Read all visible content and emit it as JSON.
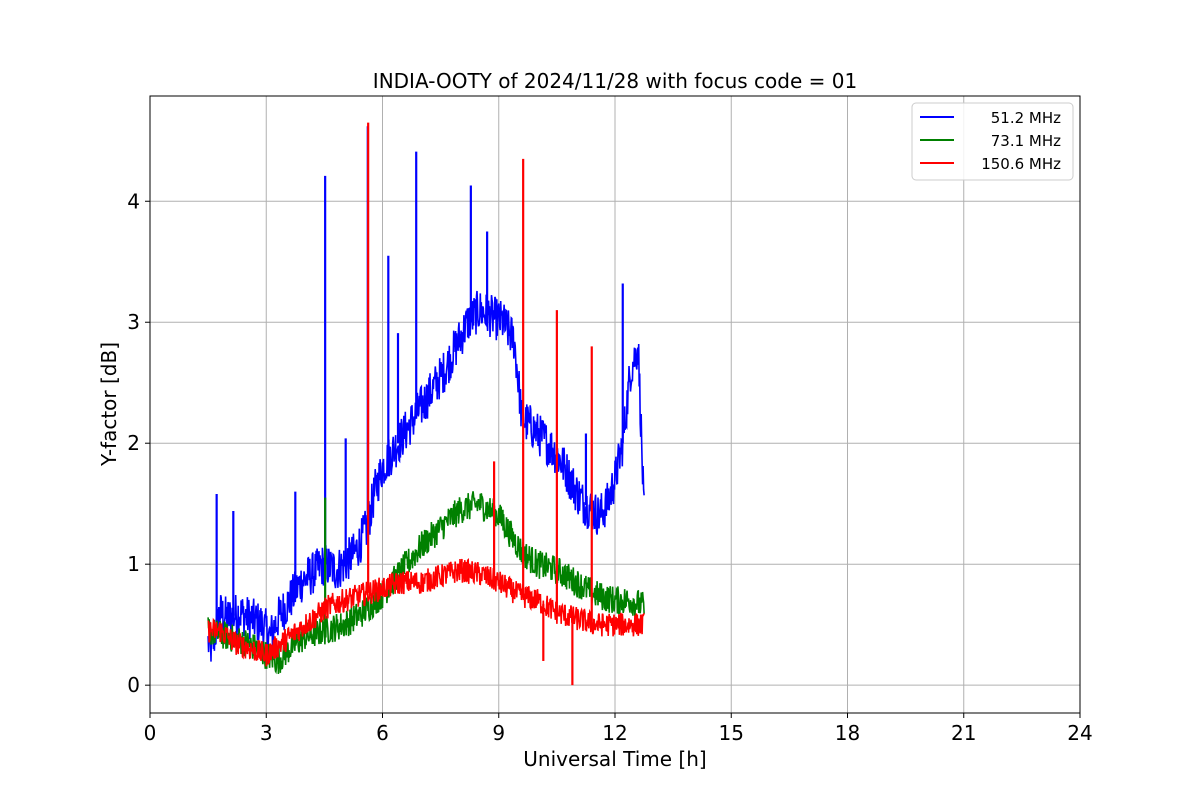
{
  "chart_data": {
    "type": "line",
    "title": "INDIA-OOTY of 2024/11/28 with focus code = 01",
    "xlabel": "Universal Time [h]",
    "ylabel": "Y-factor [dB]",
    "xlim": [
      0,
      24
    ],
    "ylim": [
      -0.23,
      4.87
    ],
    "xticks": [
      0,
      3,
      6,
      9,
      12,
      15,
      18,
      21,
      24
    ],
    "yticks": [
      0,
      1,
      2,
      3,
      4
    ],
    "grid": true,
    "legend_position": "top-right",
    "series": [
      {
        "name": "51.2 MHz",
        "color": "#0000ff",
        "x": [
          1.5,
          1.6,
          1.8,
          2.0,
          2.3,
          2.6,
          2.9,
          3.1,
          3.3,
          3.5,
          3.7,
          3.9,
          4.1,
          4.3,
          4.5,
          4.8,
          5.0,
          5.3,
          5.6,
          5.8,
          6.0,
          6.2,
          6.4,
          6.6,
          6.8,
          7.0,
          7.3,
          7.6,
          7.9,
          8.2,
          8.5,
          8.8,
          9.1,
          9.4,
          9.6,
          9.8,
          10.1,
          10.4,
          10.7,
          11.0,
          11.2,
          11.4,
          11.6,
          11.8,
          12.0,
          12.2,
          12.4,
          12.6,
          12.75
        ],
        "y": [
          0.35,
          0.3,
          0.6,
          0.55,
          0.6,
          0.55,
          0.5,
          0.4,
          0.55,
          0.65,
          0.75,
          0.85,
          0.9,
          0.95,
          1.0,
          0.95,
          1.0,
          1.1,
          1.3,
          1.6,
          1.8,
          1.9,
          2.0,
          2.1,
          2.2,
          2.3,
          2.45,
          2.6,
          2.8,
          3.0,
          3.1,
          3.05,
          3.0,
          2.85,
          2.2,
          2.15,
          2.05,
          1.95,
          1.8,
          1.6,
          1.5,
          1.45,
          1.4,
          1.5,
          1.7,
          2.0,
          2.6,
          2.8,
          1.4
        ],
        "spikes": [
          [
            1.72,
            1.58
          ],
          [
            2.15,
            1.44
          ],
          [
            3.75,
            1.6
          ],
          [
            4.52,
            4.21
          ],
          [
            5.05,
            2.04
          ],
          [
            5.62,
            4.62
          ],
          [
            6.15,
            3.55
          ],
          [
            6.4,
            2.91
          ],
          [
            6.87,
            4.41
          ],
          [
            8.28,
            4.13
          ],
          [
            8.7,
            3.75
          ],
          [
            11.25,
            2.08
          ],
          [
            12.2,
            3.32
          ]
        ]
      },
      {
        "name": "73.1 MHz",
        "color": "#008000",
        "x": [
          1.5,
          2.0,
          2.5,
          3.0,
          3.3,
          3.6,
          4.0,
          4.5,
          5.0,
          5.5,
          6.0,
          6.5,
          7.0,
          7.5,
          8.0,
          8.5,
          9.0,
          9.3,
          9.6,
          10.0,
          10.5,
          11.0,
          11.5,
          12.0,
          12.4,
          12.75
        ],
        "y": [
          0.45,
          0.4,
          0.35,
          0.25,
          0.2,
          0.3,
          0.4,
          0.45,
          0.5,
          0.6,
          0.75,
          0.95,
          1.15,
          1.3,
          1.45,
          1.5,
          1.4,
          1.25,
          1.1,
          1.0,
          0.95,
          0.85,
          0.75,
          0.7,
          0.7,
          0.65
        ],
        "spikes": [
          [
            4.52,
            1.55
          ],
          [
            9.1,
            1.45
          ]
        ]
      },
      {
        "name": "150.6 MHz",
        "color": "#ff0000",
        "x": [
          1.5,
          1.8,
          2.2,
          2.6,
          3.0,
          3.4,
          3.8,
          4.2,
          4.6,
          5.0,
          5.5,
          6.0,
          6.5,
          7.0,
          7.5,
          8.0,
          8.5,
          9.0,
          9.5,
          10.0,
          10.5,
          11.0,
          11.5,
          12.0,
          12.4,
          12.75
        ],
        "y": [
          0.45,
          0.45,
          0.35,
          0.3,
          0.25,
          0.35,
          0.45,
          0.55,
          0.65,
          0.7,
          0.75,
          0.8,
          0.85,
          0.85,
          0.9,
          0.95,
          0.92,
          0.85,
          0.75,
          0.7,
          0.6,
          0.55,
          0.5,
          0.5,
          0.5,
          0.5
        ],
        "spikes": [
          [
            5.63,
            4.65
          ],
          [
            9.63,
            4.35
          ],
          [
            10.5,
            3.1
          ],
          [
            11.4,
            2.8
          ],
          [
            8.88,
            1.85
          ],
          [
            10.9,
            0.0
          ],
          [
            10.15,
            0.2
          ]
        ]
      }
    ]
  }
}
